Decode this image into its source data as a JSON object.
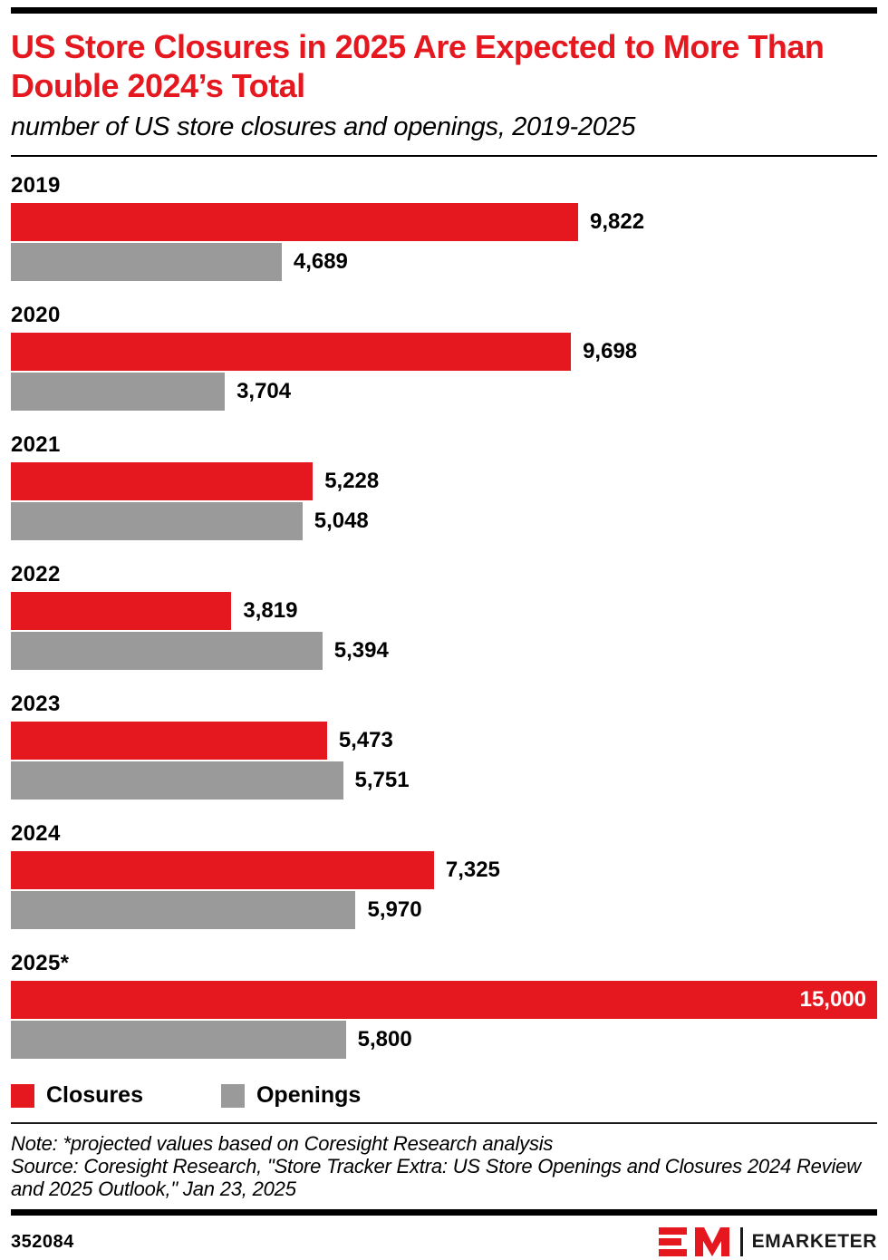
{
  "colors": {
    "red": "#e5171f",
    "gray": "#9a9a9a",
    "inside_label": "#ffffff"
  },
  "header": {
    "title": "US Store Closures in 2025 Are Expected to More Than Double 2024’s Total",
    "subtitle": "number of US store closures and openings, 2019-2025"
  },
  "chart_data": {
    "type": "bar",
    "orientation": "horizontal",
    "title": "US Store Closures in 2025 Are Expected to More Than Double 2024’s Total",
    "subtitle": "number of US store closures and openings, 2019-2025",
    "categories": [
      "2019",
      "2020",
      "2021",
      "2022",
      "2023",
      "2024",
      "2025*"
    ],
    "series": [
      {
        "name": "Closures",
        "color": "#e5171f",
        "values": [
          9822,
          9698,
          5228,
          3819,
          5473,
          7325,
          15000
        ]
      },
      {
        "name": "Openings",
        "color": "#9a9a9a",
        "values": [
          4689,
          3704,
          5048,
          5394,
          5751,
          5970,
          5800
        ]
      }
    ],
    "xlim": [
      0,
      15000
    ],
    "grid": false,
    "legend_position": "bottom",
    "value_labels": "end-of-bar, inside bar when near full width"
  },
  "legend": {
    "items": [
      {
        "label": "Closures",
        "color": "#e5171f"
      },
      {
        "label": "Openings",
        "color": "#9a9a9a"
      }
    ]
  },
  "notes": {
    "note": "Note: *projected values based on Coresight Research analysis",
    "source": "Source: Coresight Research, \"Store Tracker Extra: US Store Openings and Closures 2024 Review and 2025 Outlook,\" Jan 23, 2025"
  },
  "footer": {
    "chart_id": "352084",
    "brand": "EMARKETER"
  }
}
